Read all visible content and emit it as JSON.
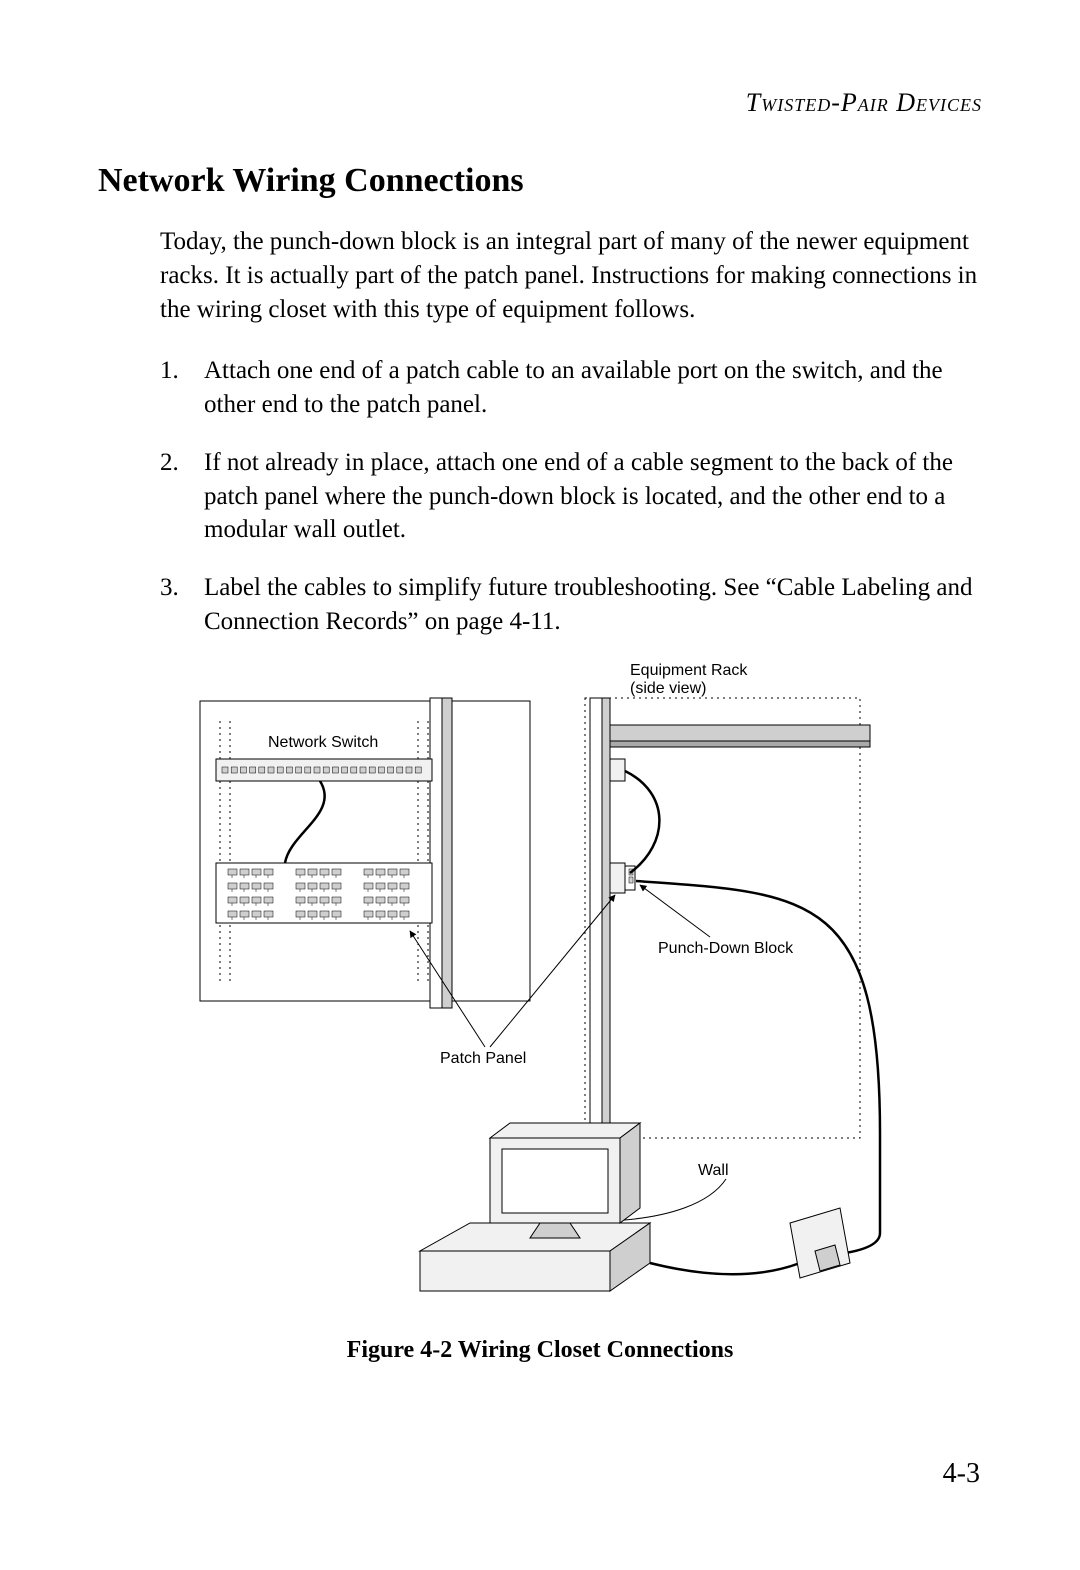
{
  "header": {
    "running_head": "Twisted-Pair Devices"
  },
  "section": {
    "title": "Network Wiring Connections",
    "intro": "Today, the punch-down block is an integral part of many of the newer equipment racks. It is actually part of the patch panel. Instructions for making connections in the wiring closet with this type of equipment follows.",
    "steps": [
      "Attach one end of a patch cable to an available port on the switch, and the other end to the patch panel.",
      "If not already in place, attach one end of a cable segment to the back of the patch panel where the punch-down block is located, and the other end to a modular wall outlet.",
      "Label the cables to simplify future troubleshooting. See “Cable Labeling and Connection Records” on page 4-11."
    ]
  },
  "figure": {
    "caption": "Figure 4-2  Wiring Closet Connections",
    "labels": {
      "equipment_rack": "Equipment Rack",
      "equipment_rack_sub": "(side view)",
      "network_switch": "Network Switch",
      "patch_panel": "Patch Panel",
      "punch_down_block": "Punch-Down Block",
      "wall": "Wall"
    },
    "style": {
      "label_fontsize": 16,
      "label_color": "#000000",
      "stroke": "#000000",
      "fill_light": "#f1f1f1",
      "fill_mid": "#cfcfcf",
      "fill_dark": "#aaaaaa",
      "dotted_dash": "2,4",
      "cable_width": 2.5,
      "thin_width": 1
    }
  },
  "footer": {
    "page_number": "4-3"
  }
}
